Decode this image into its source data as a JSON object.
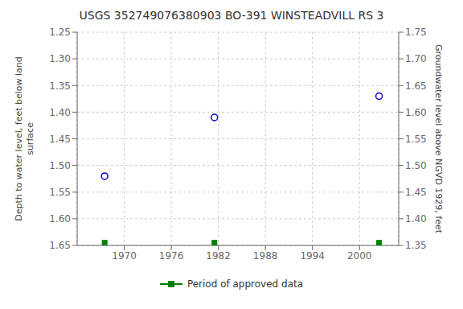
{
  "chart_data": {
    "type": "scatter",
    "title": "USGS 352749076380903 BO-391 WINSTEADVILL RS 3",
    "y_label": "Depth to water level, feet below land\nsurface",
    "y2_label": "Groundwater level above NGVD 1929, feet",
    "xlim": [
      1964,
      2005
    ],
    "xticks": [
      1970,
      1976,
      1982,
      1988,
      1994,
      2000
    ],
    "ylim": [
      1.65,
      1.25
    ],
    "yticks": [
      1.25,
      {
        "value": 1.3,
        "label": "1.30"
      },
      1.35,
      {
        "value": 1.4,
        "label": "1.40"
      },
      1.45,
      {
        "value": 1.5,
        "label": "1.50"
      },
      1.55,
      {
        "value": 1.6,
        "label": "1.60"
      },
      1.65
    ],
    "y2lim": [
      1.35,
      1.75
    ],
    "y2ticks": [
      1.75,
      {
        "value": 1.7,
        "label": "1.70"
      },
      1.65,
      {
        "value": 1.6,
        "label": "1.60"
      },
      1.55,
      {
        "value": 1.5,
        "label": "1.50"
      },
      1.45,
      {
        "value": 1.4,
        "label": "1.40"
      },
      1.35
    ],
    "grid": true,
    "legend": "bottom",
    "series": [
      {
        "color": "#0000cc",
        "marker": "circle",
        "x": [
          1967.5,
          1981.5,
          2002.5
        ],
        "values": [
          1.52,
          1.41,
          1.37
        ]
      },
      {
        "name": "Period of approved data",
        "color": "#008000",
        "marker": "square",
        "x": [
          1967.5,
          1981.5,
          2002.5
        ],
        "values": [
          1.645,
          1.645,
          1.645
        ]
      }
    ]
  }
}
